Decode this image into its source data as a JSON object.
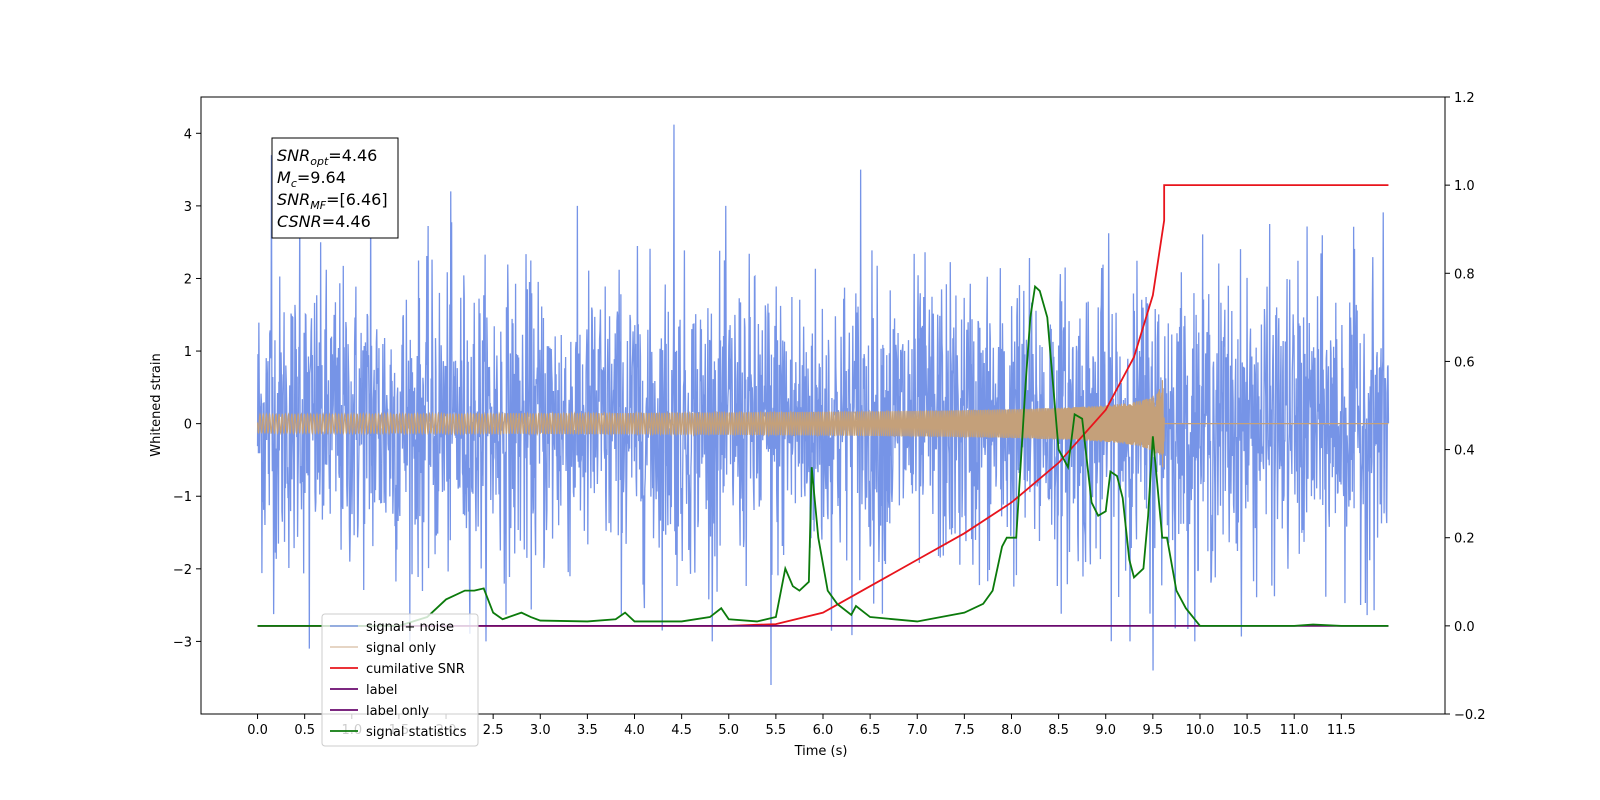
{
  "chart_data": {
    "type": "line",
    "xlabel": "Time (s)",
    "ylabel_left": "Whitened strain",
    "xlim": [
      -0.6,
      12.6
    ],
    "ylim_left": [
      -4.0,
      4.5
    ],
    "ylim_right": [
      -0.2,
      1.2
    ],
    "x_ticks": [
      0.0,
      0.5,
      1.0,
      1.5,
      2.0,
      2.5,
      3.0,
      3.5,
      4.0,
      4.5,
      5.0,
      5.5,
      6.0,
      6.5,
      7.0,
      7.5,
      8.0,
      8.5,
      9.0,
      9.5,
      10.0,
      10.5,
      11.0,
      11.5
    ],
    "x_tick_labels": [
      "0.0",
      "0.5",
      "1.0",
      "1.5",
      "2.0",
      "2.5",
      "3.0",
      "3.5",
      "4.0",
      "4.5",
      "5.0",
      "5.5",
      "6.0",
      "6.5",
      "7.0",
      "7.5",
      "8.0",
      "8.5",
      "9.0",
      "9.5",
      "10.0",
      "10.5",
      "11.0",
      "11.5"
    ],
    "y_ticks_left": [
      -3,
      -2,
      -1,
      0,
      1,
      2,
      3,
      4
    ],
    "y_tick_labels_left": [
      "−3",
      "−2",
      "−1",
      "0",
      "1",
      "2",
      "3",
      "4"
    ],
    "y_ticks_right": [
      -0.2,
      0.0,
      0.2,
      0.4,
      0.6,
      0.8,
      1.0,
      1.2
    ],
    "y_tick_labels_right": [
      "−0.2",
      "0.0",
      "0.2",
      "0.4",
      "0.6",
      "0.8",
      "1.0",
      "1.2"
    ],
    "legend_position": "lower-left",
    "series": [
      {
        "name": "signal+ noise",
        "axis": "left",
        "color": "#6f8ee6",
        "style": "noise",
        "x_range": [
          0.0,
          12.0
        ],
        "std": 1.0,
        "peak_points": [
          [
            0.15,
            3.7
          ],
          [
            0.45,
            3.1
          ],
          [
            1.2,
            3.2
          ],
          [
            2.05,
            3.2
          ],
          [
            4.42,
            4.12
          ],
          [
            6.4,
            3.5
          ],
          [
            5.45,
            -3.6
          ],
          [
            9.5,
            -3.4
          ],
          [
            0.55,
            -3.1
          ]
        ]
      },
      {
        "name": "signal only",
        "axis": "left",
        "color": "#c4a07a",
        "style": "chirp",
        "x_range": [
          0.0,
          12.0
        ],
        "chirp_end": 9.62,
        "amplitude_end": 0.6
      },
      {
        "name": "cumilative SNR",
        "axis": "right",
        "color": "#e8141c",
        "x": [
          0.0,
          5.0,
          5.5,
          6.0,
          6.5,
          7.0,
          7.5,
          8.0,
          8.5,
          9.0,
          9.3,
          9.5,
          9.62,
          9.62,
          12.0
        ],
        "y": [
          0.0,
          0.0,
          0.004,
          0.03,
          0.09,
          0.15,
          0.21,
          0.28,
          0.37,
          0.49,
          0.61,
          0.75,
          0.92,
          1.0,
          1.0
        ]
      },
      {
        "name": "label",
        "axis": "right",
        "color": "#6a0a6e",
        "x": [
          0.0,
          12.0
        ],
        "y": [
          0.0,
          0.0
        ]
      },
      {
        "name": "label only",
        "axis": "right",
        "color": "#6a0a6e",
        "hidden": true,
        "x": [],
        "y": []
      },
      {
        "name": "signal statistics",
        "axis": "right",
        "color": "#0b7a0b",
        "x": [
          0.0,
          1.5,
          1.8,
          2.0,
          2.2,
          2.3,
          2.4,
          2.5,
          2.6,
          2.8,
          2.9,
          3.0,
          3.5,
          3.8,
          3.9,
          4.0,
          4.5,
          4.8,
          4.92,
          5.0,
          5.3,
          5.5,
          5.6,
          5.68,
          5.75,
          5.85,
          5.88,
          5.95,
          6.05,
          6.15,
          6.3,
          6.35,
          6.5,
          7.0,
          7.5,
          7.7,
          7.8,
          7.9,
          7.95,
          8.05,
          8.15,
          8.2,
          8.25,
          8.3,
          8.38,
          8.5,
          8.6,
          8.67,
          8.75,
          8.85,
          8.92,
          9.0,
          9.05,
          9.12,
          9.18,
          9.25,
          9.3,
          9.4,
          9.45,
          9.5,
          9.6,
          9.65,
          9.75,
          9.85,
          10.0,
          11.0,
          11.2,
          11.5,
          12.0
        ],
        "y": [
          0.0,
          0.0,
          0.02,
          0.06,
          0.08,
          0.08,
          0.085,
          0.03,
          0.015,
          0.03,
          0.02,
          0.012,
          0.01,
          0.015,
          0.03,
          0.01,
          0.01,
          0.02,
          0.04,
          0.015,
          0.01,
          0.02,
          0.13,
          0.09,
          0.08,
          0.1,
          0.36,
          0.2,
          0.08,
          0.05,
          0.025,
          0.045,
          0.02,
          0.01,
          0.03,
          0.05,
          0.08,
          0.18,
          0.2,
          0.2,
          0.55,
          0.7,
          0.77,
          0.76,
          0.7,
          0.4,
          0.36,
          0.48,
          0.47,
          0.28,
          0.25,
          0.26,
          0.35,
          0.34,
          0.29,
          0.15,
          0.11,
          0.13,
          0.25,
          0.43,
          0.2,
          0.2,
          0.08,
          0.04,
          0.0,
          0.0,
          0.003,
          0.0,
          0.0
        ]
      }
    ],
    "annotation": {
      "lines": [
        {
          "base": "SNR",
          "sub": "opt",
          "rest": "=4.46"
        },
        {
          "base": "M",
          "sub": "c",
          "rest": "=9.64"
        },
        {
          "base": "SNR",
          "sub": "MF",
          "rest": "=[6.46]"
        },
        {
          "base": "CSNR",
          "sub": "",
          "rest": "=4.46"
        }
      ]
    }
  }
}
